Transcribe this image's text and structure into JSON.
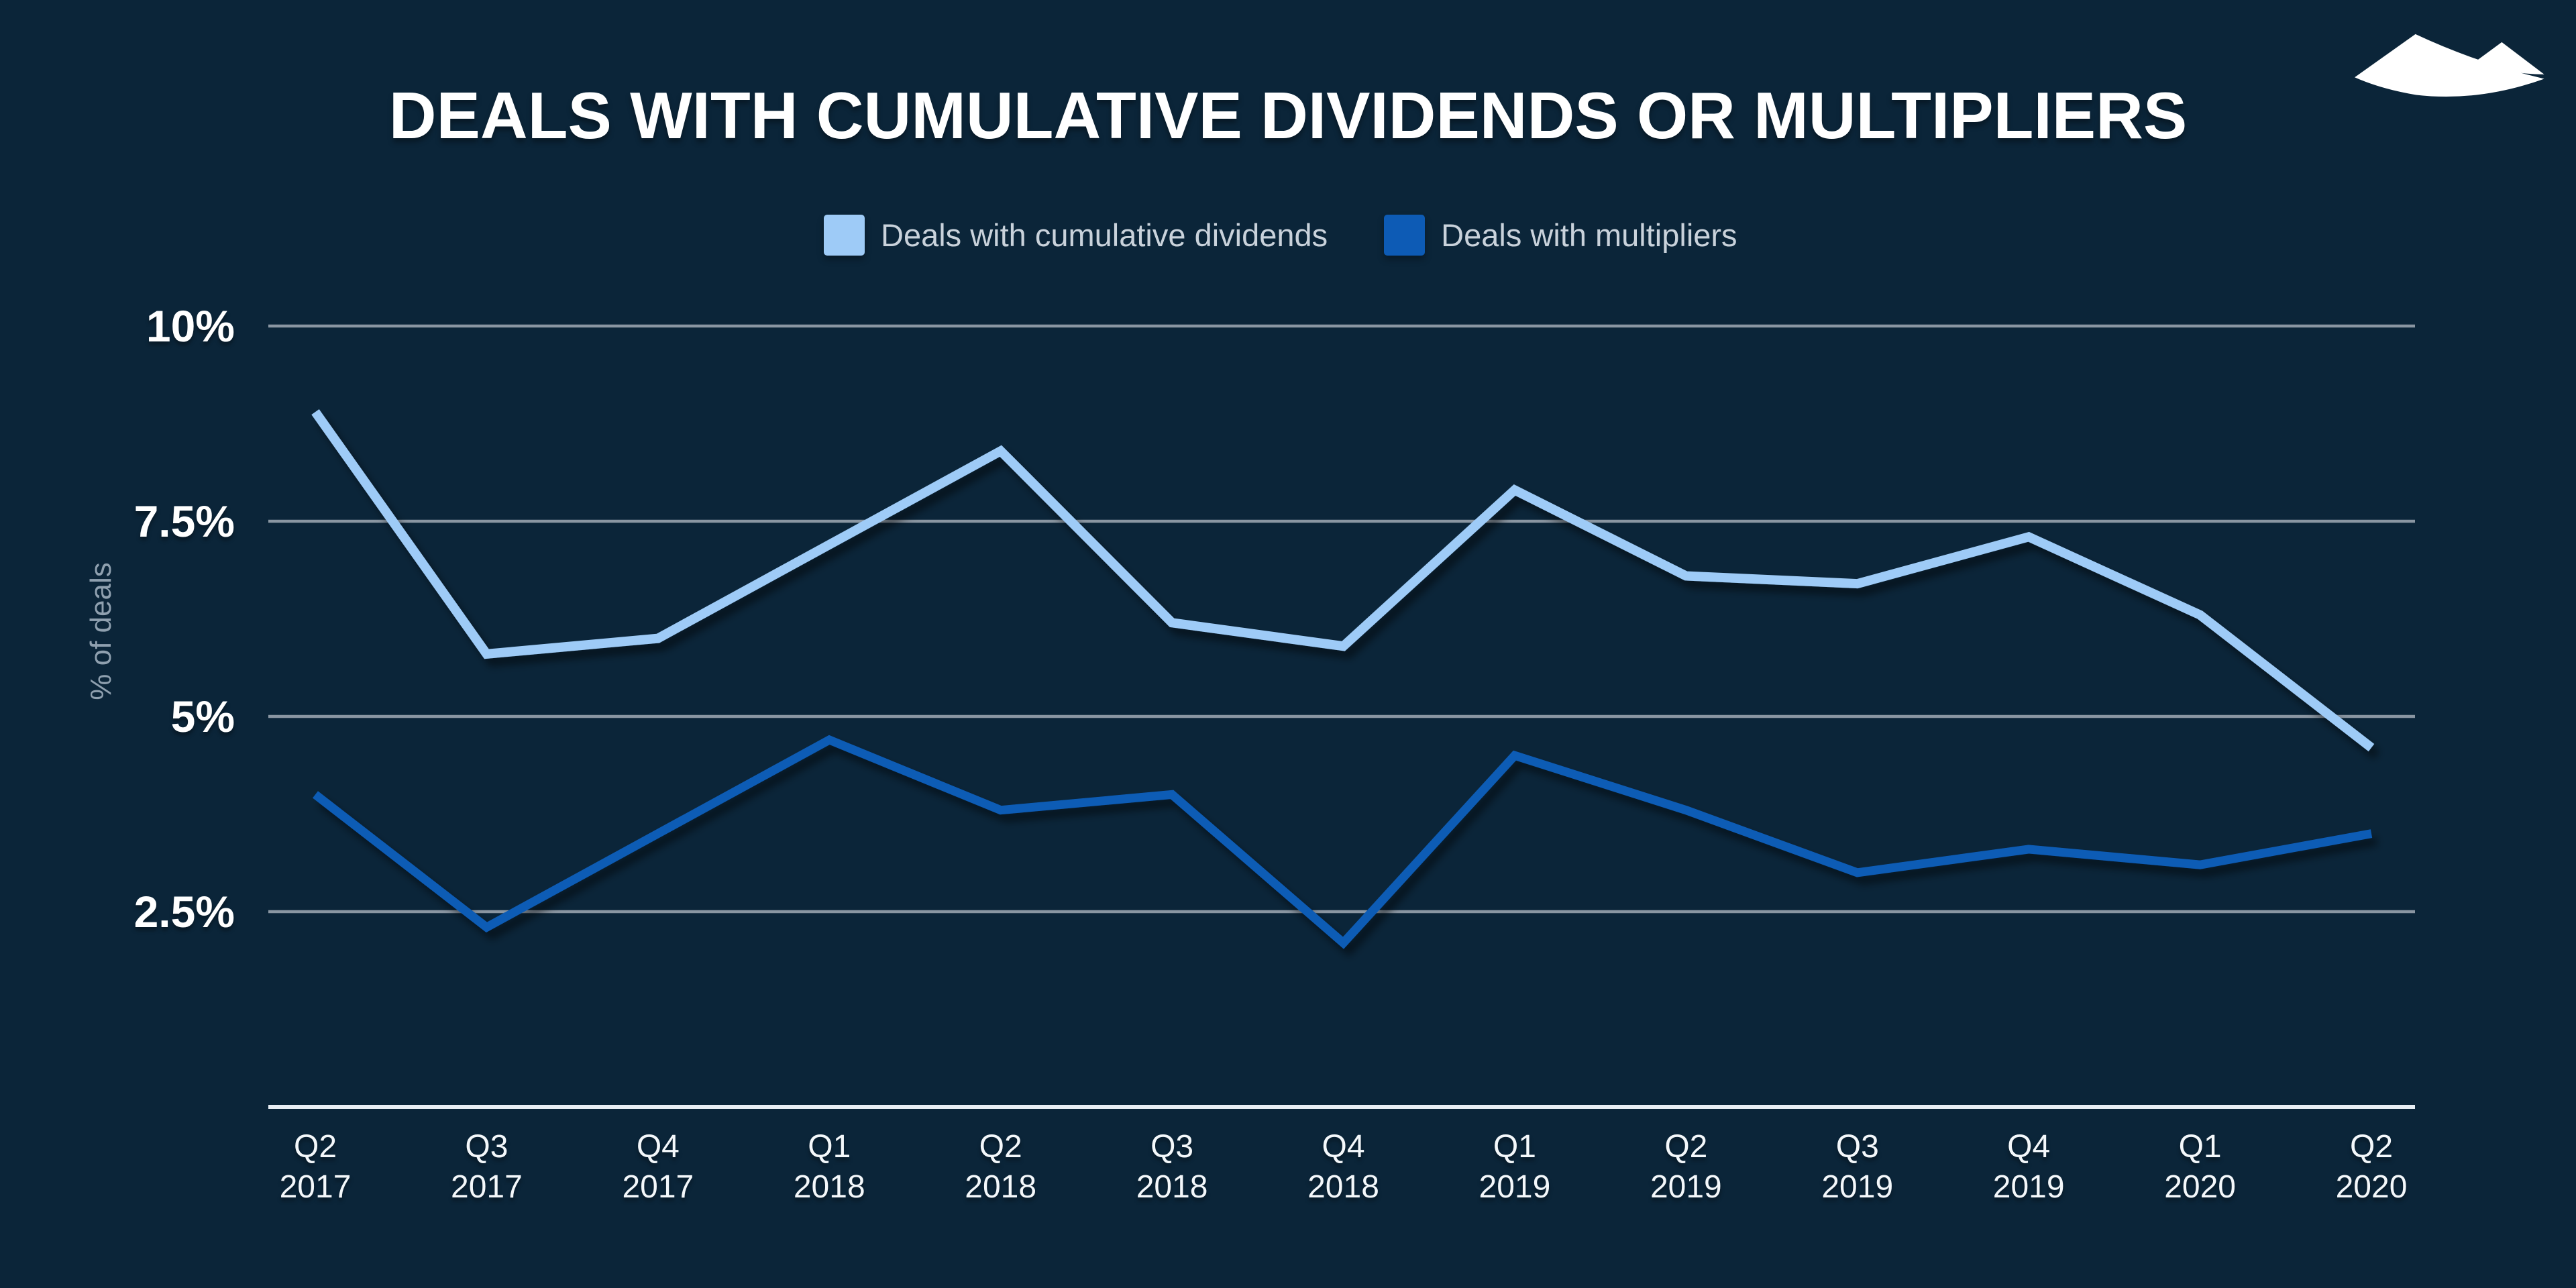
{
  "title": "DEALS WITH CUMULATIVE DIVIDENDS OR MULTIPLIERS",
  "legend": {
    "items": [
      {
        "label": "Deals with cumulative dividends",
        "color": "#9ECBF7"
      },
      {
        "label": "Deals with multipliers",
        "color": "#0D5BB5"
      }
    ]
  },
  "y_axis_title": "% of deals",
  "logo": "two-mountain-sails-logo",
  "colors": {
    "background": "#0B2539",
    "gridline": "#8A96A2",
    "axis_line": "#E8EEF4",
    "tick_text": "#FFFFFF",
    "x_label_text": "#F4F8FB",
    "legend_text": "#C9D2DB",
    "y_axis_title_text": "#8FA0AF",
    "title_text": "#FFFFFF",
    "logo_fill": "#FFFFFF",
    "series_light": "#9ECBF7",
    "series_dark": "#0D5BB5"
  },
  "chart_data": {
    "type": "line",
    "title": "DEALS WITH CUMULATIVE DIVIDENDS OR MULTIPLIERS",
    "xlabel": "",
    "ylabel": "% of deals",
    "ylim": [
      0,
      10
    ],
    "grid": true,
    "legend_position": "top",
    "categories": [
      "Q2 2017",
      "Q3 2017",
      "Q4 2017",
      "Q1 2018",
      "Q2 2018",
      "Q3 2018",
      "Q4 2018",
      "Q1 2019",
      "Q2 2019",
      "Q3 2019",
      "Q4 2019",
      "Q1 2020",
      "Q2 2020"
    ],
    "y_ticks": [
      {
        "label": "10%",
        "value": 10
      },
      {
        "label": "7.5%",
        "value": 7.5
      },
      {
        "label": "5%",
        "value": 5
      },
      {
        "label": "2.5%",
        "value": 2.5
      }
    ],
    "series": [
      {
        "name": "Deals with cumulative dividends",
        "color": "#9ECBF7",
        "values": [
          8.9,
          5.8,
          6.0,
          7.2,
          8.4,
          6.2,
          5.9,
          7.9,
          6.8,
          6.7,
          7.3,
          6.3,
          4.6
        ]
      },
      {
        "name": "Deals with multipliers",
        "color": "#0D5BB5",
        "values": [
          4.0,
          2.3,
          3.5,
          4.7,
          3.8,
          4.0,
          2.1,
          4.5,
          3.8,
          3.0,
          3.3,
          3.1,
          3.5
        ]
      }
    ]
  }
}
